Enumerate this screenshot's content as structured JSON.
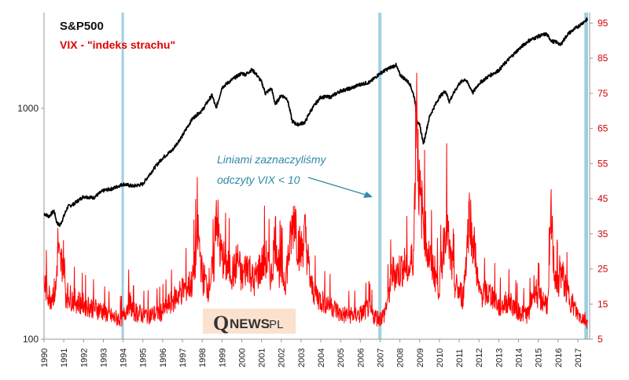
{
  "chart_data": {
    "type": "line",
    "title": "S&P500",
    "subtitle": "VIX - \"indeks strachu\"",
    "annotation_line1": "Liniami zaznaczyliśmy",
    "annotation_line2": "odczyty VIX < 10",
    "watermark": {
      "q": "Q",
      "news": "NEWS",
      "pl": ".PL"
    },
    "x_ticks": [
      "1990",
      "1991",
      "1992",
      "1993",
      "1994",
      "1995",
      "1996",
      "1997",
      "1998",
      "1999",
      "2000",
      "2001",
      "2002",
      "2003",
      "2004",
      "2005",
      "2006",
      "2007",
      "2008",
      "2009",
      "2010",
      "2011",
      "2012",
      "2013",
      "2014",
      "2015",
      "2016",
      "2017"
    ],
    "y_left": {
      "scale": "log",
      "range": [
        100,
        2600
      ],
      "ticks": [
        100,
        1000
      ],
      "tick_labels": [
        "100",
        "1000"
      ]
    },
    "y_right": {
      "scale": "linear",
      "range": [
        5,
        98
      ],
      "ticks": [
        5,
        15,
        25,
        35,
        45,
        55,
        65,
        75,
        85,
        95
      ],
      "tick_labels": [
        "5",
        "15",
        "25",
        "35",
        "45",
        "55",
        "65",
        "75",
        "85",
        "95"
      ]
    },
    "colors": {
      "sp500": "#000000",
      "vix": "#ff0000",
      "right_axis": "#d10000",
      "markers": "#9ecfdf",
      "annotation": "#2e8aa8",
      "watermark_bg": "#fbe2cf"
    },
    "marker_dates": [
      1993.96,
      1994.0,
      2006.95,
      2007.03,
      2017.37,
      2017.42,
      2017.48
    ],
    "series": [
      {
        "name": "S&P500",
        "axis": "left",
        "x": [
          1990.0,
          1990.25,
          1990.5,
          1990.65,
          1990.8,
          1991.0,
          1991.2,
          1991.5,
          1992.0,
          1992.5,
          1993.0,
          1993.5,
          1994.0,
          1994.5,
          1995.0,
          1995.5,
          1996.0,
          1996.5,
          1997.0,
          1997.5,
          1997.8,
          1998.0,
          1998.5,
          1998.7,
          1998.85,
          1999.0,
          1999.5,
          2000.0,
          2000.2,
          2000.5,
          2000.7,
          2001.0,
          2001.2,
          2001.5,
          2001.7,
          2002.0,
          2002.3,
          2002.55,
          2002.8,
          2003.2,
          2003.5,
          2004.0,
          2004.5,
          2005.0,
          2005.5,
          2006.0,
          2006.5,
          2007.0,
          2007.5,
          2007.8,
          2008.0,
          2008.3,
          2008.5,
          2008.75,
          2008.85,
          2009.0,
          2009.2,
          2009.5,
          2010.0,
          2010.3,
          2010.5,
          2011.0,
          2011.3,
          2011.7,
          2012.0,
          2012.5,
          2013.0,
          2013.5,
          2014.0,
          2014.5,
          2015.0,
          2015.4,
          2015.7,
          2016.0,
          2016.1,
          2016.5,
          2017.0,
          2017.5
        ],
        "values": [
          350,
          340,
          360,
          320,
          310,
          340,
          375,
          385,
          415,
          410,
          440,
          450,
          470,
          460,
          470,
          540,
          610,
          660,
          760,
          900,
          950,
          980,
          1140,
          1000,
          1100,
          1230,
          1330,
          1420,
          1400,
          1470,
          1420,
          1300,
          1160,
          1220,
          1040,
          1140,
          1100,
          880,
          850,
          870,
          980,
          1120,
          1120,
          1190,
          1220,
          1270,
          1300,
          1420,
          1500,
          1540,
          1400,
          1330,
          1280,
          1100,
          900,
          840,
          700,
          920,
          1120,
          1190,
          1070,
          1280,
          1340,
          1170,
          1280,
          1380,
          1460,
          1630,
          1800,
          1960,
          2050,
          2100,
          1950,
          1930,
          1870,
          2100,
          2260,
          2440
        ]
      },
      {
        "name": "VIX",
        "axis": "right",
        "x": [
          1990.0,
          1990.3,
          1990.6,
          1990.7,
          1990.8,
          1991.0,
          1991.1,
          1991.3,
          1991.6,
          1992.0,
          1992.5,
          1993.0,
          1993.5,
          1994.0,
          1994.3,
          1994.5,
          1995.0,
          1995.5,
          1996.0,
          1996.5,
          1997.0,
          1997.5,
          1997.8,
          1998.0,
          1998.3,
          1998.6,
          1998.7,
          1998.9,
          1999.2,
          1999.6,
          1999.8,
          2000.0,
          2000.3,
          2000.6,
          2000.9,
          2001.2,
          2001.5,
          2001.7,
          2001.9,
          2002.2,
          2002.55,
          2002.7,
          2002.8,
          2003.0,
          2003.2,
          2003.5,
          2004.0,
          2004.5,
          2005.0,
          2005.5,
          2006.0,
          2006.4,
          2006.6,
          2006.9,
          2007.0,
          2007.2,
          2007.45,
          2007.6,
          2007.9,
          2008.2,
          2008.5,
          2008.7,
          2008.85,
          2008.9,
          2009.0,
          2009.2,
          2009.4,
          2009.7,
          2010.0,
          2010.35,
          2010.5,
          2010.8,
          2011.2,
          2011.55,
          2011.6,
          2011.8,
          2012.0,
          2012.5,
          2012.8,
          2013.0,
          2013.5,
          2014.0,
          2014.5,
          2014.8,
          2015.0,
          2015.5,
          2015.65,
          2015.8,
          2016.0,
          2016.1,
          2016.5,
          2016.9,
          2017.0,
          2017.3,
          2017.5
        ],
        "values": [
          21,
          17,
          19,
          32,
          26,
          28,
          18,
          17,
          16,
          15,
          14,
          13,
          11,
          11,
          16,
          13,
          12,
          12,
          13,
          16,
          19,
          21,
          35,
          23,
          20,
          26,
          44,
          30,
          26,
          24,
          28,
          22,
          27,
          21,
          25,
          28,
          23,
          35,
          25,
          22,
          36,
          42,
          33,
          30,
          35,
          20,
          16,
          15,
          12,
          12,
          12,
          14,
          12,
          11,
          11,
          12,
          18,
          24,
          24,
          26,
          25,
          30,
          80,
          60,
          45,
          40,
          30,
          25,
          20,
          40,
          30,
          20,
          17,
          44,
          35,
          30,
          18,
          18,
          17,
          14,
          16,
          13,
          12,
          20,
          17,
          15,
          40,
          25,
          20,
          25,
          18,
          13,
          12,
          11,
          10
        ]
      }
    ]
  }
}
